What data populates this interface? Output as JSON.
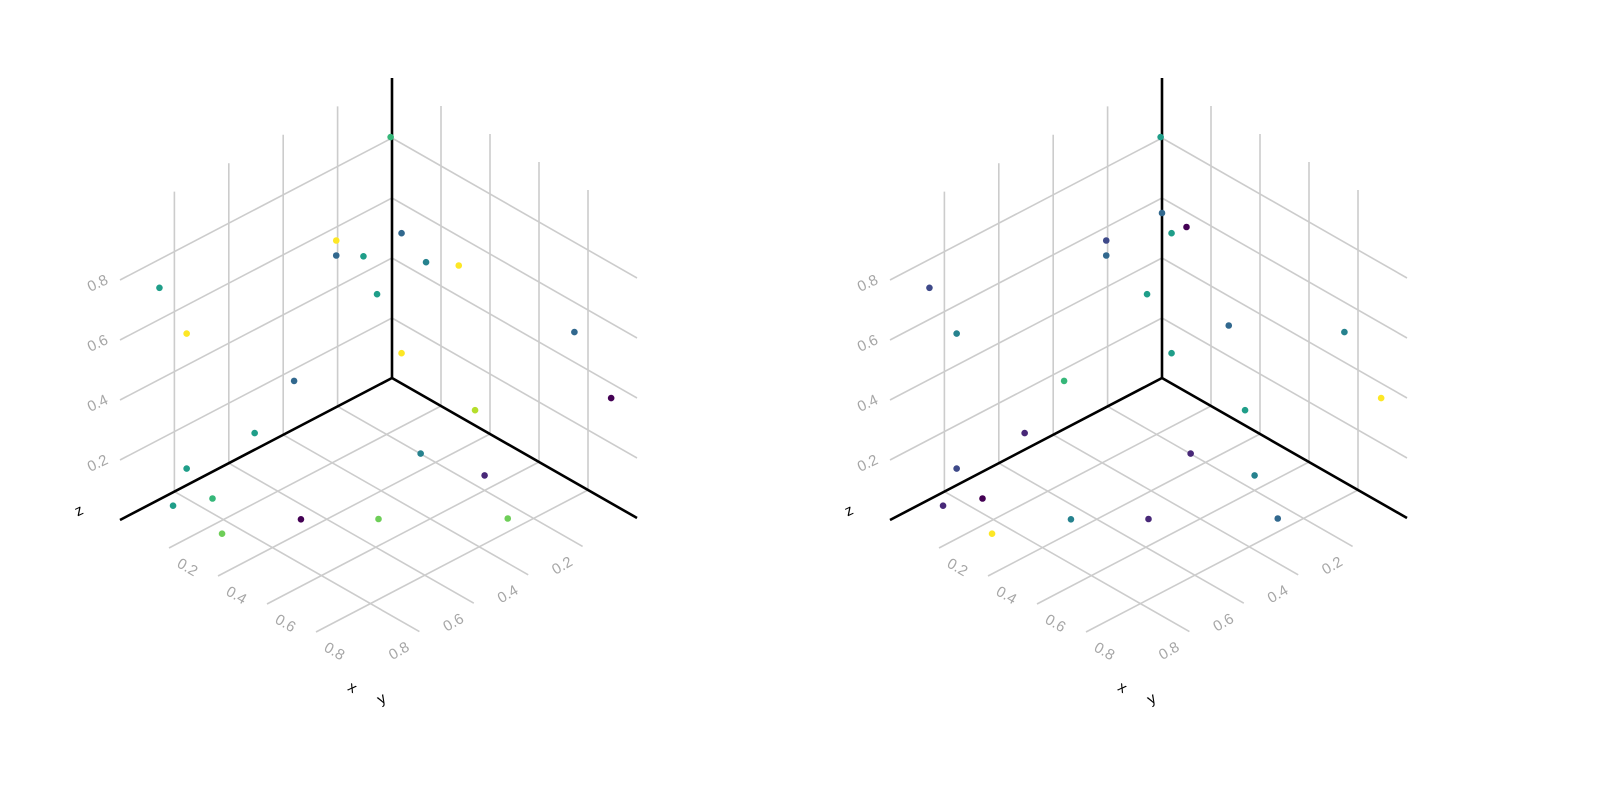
{
  "colormap": [
    "#440154",
    "#482878",
    "#3e4989",
    "#31688e",
    "#26828e",
    "#1f9e89",
    "#35b779",
    "#6ece58",
    "#b5de2b",
    "#fde725"
  ],
  "chart_data": [
    {
      "type": "scatter",
      "title": "",
      "xlabel": "x",
      "ylabel": "y",
      "zlabel": "z",
      "xlim": [
        0,
        1
      ],
      "ylim": [
        0,
        1
      ],
      "zlim": [
        0,
        1
      ],
      "xticks": [
        "0.2",
        "0.4",
        "0.6",
        "0.8"
      ],
      "yticks": [
        "0.2",
        "0.4",
        "0.6",
        "0.8"
      ],
      "zticks": [
        "0.2",
        "0.4",
        "0.6",
        "0.8"
      ],
      "grid": true,
      "points": [
        {
          "x": 0.05,
          "y": 0.05,
          "z": 0.85,
          "c": 0.7
        },
        {
          "x": 0.55,
          "y": 0.25,
          "z": 0.75,
          "c": 0.95
        },
        {
          "x": 0.8,
          "y": 0.05,
          "z": 0.55,
          "c": 0.35
        },
        {
          "x": 0.95,
          "y": 0.05,
          "z": 0.4,
          "c": 0.0
        },
        {
          "x": 0.15,
          "y": 0.1,
          "z": 0.6,
          "c": 0.35
        },
        {
          "x": 0.25,
          "y": 0.1,
          "z": 0.55,
          "c": 0.4
        },
        {
          "x": 0.05,
          "y": 0.15,
          "z": 0.5,
          "c": 0.6
        },
        {
          "x": 0.05,
          "y": 0.25,
          "z": 0.6,
          "c": 0.95
        },
        {
          "x": 0.05,
          "y": 0.25,
          "z": 0.55,
          "c": 0.3
        },
        {
          "x": 0.05,
          "y": 0.1,
          "z": 0.35,
          "c": 0.6
        },
        {
          "x": 0.15,
          "y": 0.1,
          "z": 0.2,
          "c": 1.0
        },
        {
          "x": 0.05,
          "y": 0.9,
          "z": 0.75,
          "c": 0.5
        },
        {
          "x": 0.05,
          "y": 0.8,
          "z": 0.55,
          "c": 0.95
        },
        {
          "x": 0.45,
          "y": 0.1,
          "z": 0.15,
          "c": 0.85
        },
        {
          "x": 0.45,
          "y": 0.3,
          "z": 0.1,
          "c": 0.45
        },
        {
          "x": 0.1,
          "y": 0.45,
          "z": 0.25,
          "c": 0.35
        },
        {
          "x": 0.05,
          "y": 0.55,
          "z": 0.1,
          "c": 0.6
        },
        {
          "x": 0.05,
          "y": 0.8,
          "z": 0.1,
          "c": 0.5
        },
        {
          "x": 0.05,
          "y": 0.85,
          "z": 0.0,
          "c": 0.5
        },
        {
          "x": 0.1,
          "y": 0.75,
          "z": 0.0,
          "c": 0.65
        },
        {
          "x": 0.35,
          "y": 0.65,
          "z": 0.0,
          "c": 0.0
        },
        {
          "x": 0.25,
          "y": 0.85,
          "z": 0.0,
          "c": 0.8
        },
        {
          "x": 0.6,
          "y": 0.2,
          "z": 0.05,
          "c": 0.15
        },
        {
          "x": 0.75,
          "y": 0.25,
          "z": 0.0,
          "c": 0.75
        },
        {
          "x": 0.5,
          "y": 0.5,
          "z": 0.0,
          "c": 0.8
        }
      ]
    },
    {
      "type": "scatter",
      "title": "",
      "xlabel": "x",
      "ylabel": "y",
      "zlabel": "z",
      "xlim": [
        0,
        1
      ],
      "ylim": [
        0,
        1
      ],
      "zlim": [
        0,
        1
      ],
      "xticks": [
        "0.2",
        "0.4",
        "0.6",
        "0.8"
      ],
      "yticks": [
        "0.2",
        "0.4",
        "0.6",
        "0.8"
      ],
      "zticks": [
        "0.2",
        "0.4",
        "0.6",
        "0.8"
      ],
      "grid": true,
      "points": [
        {
          "x": 0.05,
          "y": 0.05,
          "z": 0.85,
          "c": 0.5
        },
        {
          "x": 0.55,
          "y": 0.25,
          "z": 0.55,
          "c": 0.3
        },
        {
          "x": 0.8,
          "y": 0.05,
          "z": 0.55,
          "c": 0.4
        },
        {
          "x": 0.95,
          "y": 0.05,
          "z": 0.4,
          "c": 1.0
        },
        {
          "x": 0.0,
          "y": 0.0,
          "z": 0.55,
          "c": 0.3
        },
        {
          "x": 0.1,
          "y": 0.0,
          "z": 0.55,
          "c": 0.0
        },
        {
          "x": 0.15,
          "y": 0.1,
          "z": 0.6,
          "c": 0.5
        },
        {
          "x": 0.05,
          "y": 0.25,
          "z": 0.6,
          "c": 0.2
        },
        {
          "x": 0.05,
          "y": 0.25,
          "z": 0.55,
          "c": 0.3
        },
        {
          "x": 0.05,
          "y": 0.1,
          "z": 0.35,
          "c": 0.55
        },
        {
          "x": 0.15,
          "y": 0.1,
          "z": 0.2,
          "c": 0.55
        },
        {
          "x": 0.05,
          "y": 0.9,
          "z": 0.75,
          "c": 0.2
        },
        {
          "x": 0.05,
          "y": 0.8,
          "z": 0.55,
          "c": 0.4
        },
        {
          "x": 0.45,
          "y": 0.1,
          "z": 0.15,
          "c": 0.55
        },
        {
          "x": 0.45,
          "y": 0.3,
          "z": 0.1,
          "c": 0.1
        },
        {
          "x": 0.1,
          "y": 0.45,
          "z": 0.25,
          "c": 0.65
        },
        {
          "x": 0.05,
          "y": 0.55,
          "z": 0.1,
          "c": 0.1
        },
        {
          "x": 0.05,
          "y": 0.8,
          "z": 0.1,
          "c": 0.2
        },
        {
          "x": 0.05,
          "y": 0.85,
          "z": 0.0,
          "c": 0.15
        },
        {
          "x": 0.1,
          "y": 0.75,
          "z": 0.0,
          "c": 0.0
        },
        {
          "x": 0.35,
          "y": 0.65,
          "z": 0.0,
          "c": 0.45
        },
        {
          "x": 0.25,
          "y": 0.85,
          "z": 0.0,
          "c": 1.0
        },
        {
          "x": 0.6,
          "y": 0.2,
          "z": 0.05,
          "c": 0.4
        },
        {
          "x": 0.75,
          "y": 0.25,
          "z": 0.0,
          "c": 0.35
        },
        {
          "x": 0.5,
          "y": 0.5,
          "z": 0.0,
          "c": 0.1
        }
      ]
    }
  ]
}
